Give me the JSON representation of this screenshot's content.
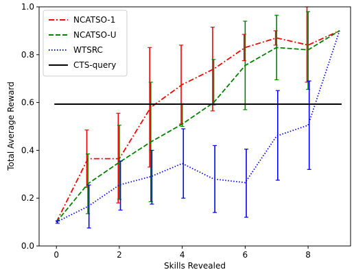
{
  "chart_data": {
    "type": "line",
    "xlabel": "Skills Revealed",
    "ylabel": "Total Average Reward",
    "xlim": [
      -0.55,
      9.35
    ],
    "ylim": [
      0.0,
      1.0
    ],
    "xticks": [
      0,
      2,
      4,
      6,
      8
    ],
    "yticks": [
      0.0,
      0.2,
      0.4,
      0.6,
      0.8,
      1.0
    ],
    "xtick_labels": [
      "0",
      "2",
      "4",
      "6",
      "8"
    ],
    "ytick_labels": [
      "0.0",
      "0.2",
      "0.4",
      "0.6",
      "0.8",
      "1.0"
    ],
    "legend_position": "top-left",
    "grid": false,
    "x": [
      0,
      1,
      2,
      3,
      4,
      5,
      6,
      7,
      8,
      9
    ],
    "series": [
      {
        "name": "NCATSO-1",
        "color": "#ff0000",
        "dash": "dashdot",
        "values": [
          0.1,
          0.365,
          0.365,
          0.58,
          0.675,
          0.74,
          0.83,
          0.87,
          0.84,
          0.9
        ],
        "err_low": [
          0.1,
          0.245,
          0.18,
          0.33,
          0.51,
          0.565,
          0.775,
          0.84,
          0.685,
          0.9
        ],
        "err_high": [
          0.1,
          0.485,
          0.555,
          0.83,
          0.84,
          0.915,
          0.885,
          0.9,
          1.0,
          0.9
        ]
      },
      {
        "name": "NCATSO-U",
        "color": "#008000",
        "dash": "dashed",
        "values": [
          0.1,
          0.26,
          0.35,
          0.435,
          0.51,
          0.6,
          0.755,
          0.83,
          0.82,
          0.9
        ],
        "err_low": [
          0.1,
          0.135,
          0.195,
          0.185,
          0.5,
          0.59,
          0.57,
          0.695,
          0.655,
          0.9
        ],
        "err_high": [
          0.1,
          0.385,
          0.505,
          0.685,
          0.595,
          0.78,
          0.94,
          0.965,
          0.98,
          0.9
        ]
      },
      {
        "name": "WTSRC",
        "color": "#0000ff",
        "dash": "dotted",
        "values": [
          0.1,
          0.165,
          0.255,
          0.29,
          0.345,
          0.28,
          0.265,
          0.46,
          0.505,
          0.9
        ],
        "err_low": [
          0.095,
          0.075,
          0.15,
          0.175,
          0.2,
          0.14,
          0.12,
          0.275,
          0.32,
          0.9
        ],
        "err_high": [
          0.105,
          0.255,
          0.355,
          0.4,
          0.49,
          0.42,
          0.405,
          0.65,
          0.69,
          0.9
        ]
      },
      {
        "name": "CTS-query",
        "color": "#000000",
        "dash": "solid",
        "values": [
          0.593,
          0.593,
          0.593,
          0.593,
          0.593,
          0.593,
          0.593,
          0.593,
          0.593,
          0.593
        ]
      }
    ]
  }
}
